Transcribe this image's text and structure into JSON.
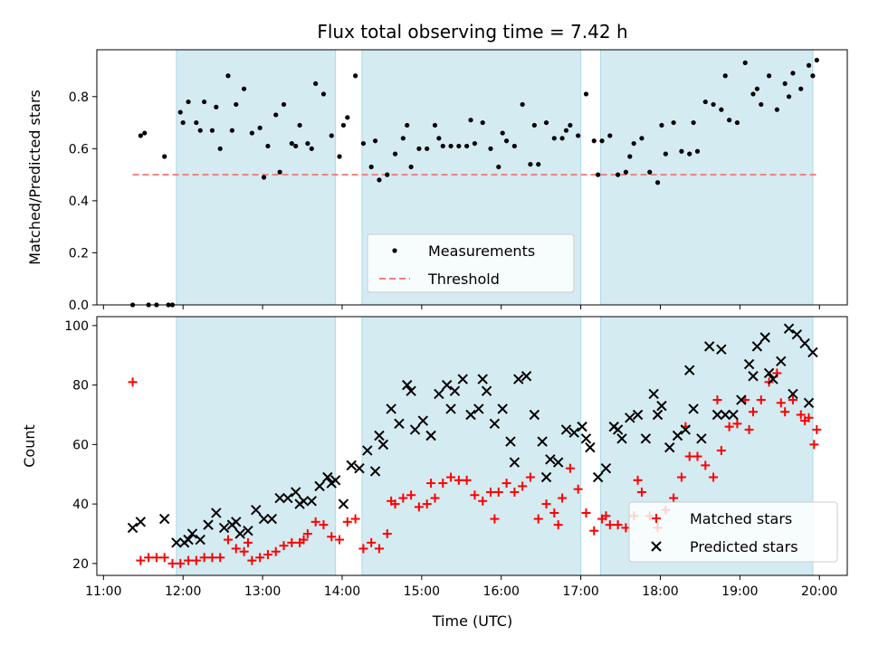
{
  "figure": {
    "title": "Flux total observing time = 7.42 h",
    "xlabel": "Time (UTC)",
    "x_ticks": [
      "11:00",
      "12:00",
      "13:00",
      "14:00",
      "15:00",
      "16:00",
      "17:00",
      "18:00",
      "19:00",
      "20:00"
    ],
    "shaded_intervals": [
      [
        "11:55",
        "13:55"
      ],
      [
        "14:15",
        "17:00"
      ],
      [
        "17:15",
        "19:55"
      ]
    ],
    "shade_color": "#add8e6"
  },
  "chart_data": [
    {
      "type": "scatter",
      "ylabel": "Matched/Predicted stars",
      "ylim": [
        0,
        0.98
      ],
      "y_ticks": [
        "0.0",
        "0.2",
        "0.4",
        "0.6",
        "0.8"
      ],
      "threshold": {
        "value": 0.5,
        "x_range": [
          "11:22",
          "19:58"
        ],
        "color": "#f08080"
      },
      "legend": {
        "position": "lower-center",
        "entries": [
          "Measurements",
          "Threshold"
        ]
      },
      "series": [
        {
          "name": "Measurements",
          "color": "#000000",
          "x": [
            "11:22",
            "11:28",
            "11:34",
            "11:40",
            "11:46",
            "11:52",
            "11:58",
            "12:04",
            "12:10",
            "12:16",
            "12:22",
            "12:28",
            "12:34",
            "12:40",
            "12:46",
            "12:52",
            "12:58",
            "13:04",
            "13:10",
            "13:16",
            "13:22",
            "13:28",
            "13:34",
            "13:40",
            "13:46",
            "13:52",
            "13:58",
            "14:04",
            "14:10",
            "14:16",
            "14:22",
            "14:28",
            "14:34",
            "14:40",
            "14:46",
            "14:52",
            "14:58",
            "15:04",
            "15:10",
            "15:16",
            "15:22",
            "15:28",
            "15:34",
            "15:40",
            "15:46",
            "15:52",
            "15:58",
            "16:04",
            "16:10",
            "16:16",
            "16:22",
            "16:28",
            "16:34",
            "16:40",
            "16:46",
            "16:52",
            "16:58",
            "17:04",
            "17:10",
            "17:16",
            "17:22",
            "17:28",
            "17:34",
            "17:40",
            "17:46",
            "17:52",
            "17:58",
            "18:04",
            "18:10",
            "18:16",
            "18:22",
            "18:28",
            "18:34",
            "18:40",
            "18:46",
            "18:52",
            "18:58",
            "19:04",
            "19:10",
            "19:16",
            "19:22",
            "19:28",
            "19:34",
            "19:40",
            "19:46",
            "19:52",
            "19:58",
            "11:31",
            "11:49",
            "12:00",
            "12:13",
            "12:25",
            "12:37",
            "13:01",
            "13:13",
            "13:25",
            "13:37",
            "14:01",
            "14:25",
            "14:49",
            "15:13",
            "15:37",
            "16:01",
            "16:25",
            "16:49",
            "17:13",
            "17:37",
            "18:01",
            "18:25",
            "18:49",
            "19:13",
            "19:37",
            "19:55"
          ],
          "y": [
            0.0,
            0.65,
            0.0,
            0.0,
            0.57,
            0.0,
            0.74,
            0.78,
            0.7,
            0.78,
            0.67,
            0.6,
            0.88,
            0.77,
            0.83,
            0.66,
            0.68,
            0.61,
            0.73,
            0.77,
            0.62,
            0.69,
            0.62,
            0.85,
            0.81,
            0.65,
            0.57,
            0.72,
            0.88,
            0.62,
            0.53,
            0.48,
            0.5,
            0.58,
            0.64,
            0.53,
            0.6,
            0.6,
            0.69,
            0.61,
            0.61,
            0.61,
            0.61,
            0.62,
            0.7,
            0.6,
            0.53,
            0.63,
            0.61,
            0.77,
            0.54,
            0.54,
            0.7,
            0.64,
            0.64,
            0.69,
            0.65,
            0.81,
            0.63,
            0.63,
            0.65,
            0.5,
            0.51,
            0.62,
            0.64,
            0.51,
            0.47,
            0.58,
            0.7,
            0.59,
            0.58,
            0.59,
            0.78,
            0.77,
            0.75,
            0.71,
            0.7,
            0.93,
            0.81,
            0.77,
            0.88,
            0.75,
            0.85,
            0.89,
            0.83,
            0.92,
            0.94,
            0.66,
            0.0,
            0.7,
            0.67,
            0.76,
            0.67,
            0.49,
            0.51,
            0.61,
            0.6,
            0.69,
            0.63,
            0.69,
            0.64,
            0.71,
            0.66,
            0.69,
            0.67,
            0.5,
            0.57,
            0.69,
            0.7,
            0.88,
            0.83,
            0.8,
            0.88
          ]
        }
      ]
    },
    {
      "type": "scatter",
      "ylabel": "Count",
      "ylim": [
        16,
        103
      ],
      "y_ticks": [
        "20",
        "40",
        "60",
        "80",
        "100"
      ],
      "legend": {
        "position": "lower-right",
        "entries": [
          "Matched stars",
          "Predicted stars"
        ]
      },
      "series": [
        {
          "name": "Matched stars",
          "marker": "plus",
          "color": "#ff0000",
          "x": [
            "11:22",
            "11:28",
            "11:34",
            "11:40",
            "11:46",
            "11:52",
            "11:58",
            "12:04",
            "12:10",
            "12:16",
            "12:22",
            "12:28",
            "12:34",
            "12:40",
            "12:46",
            "12:52",
            "12:58",
            "13:04",
            "13:10",
            "13:16",
            "13:22",
            "13:28",
            "13:34",
            "13:40",
            "13:46",
            "13:52",
            "13:58",
            "14:04",
            "14:10",
            "14:16",
            "14:22",
            "14:28",
            "14:34",
            "14:40",
            "14:46",
            "14:52",
            "14:58",
            "15:04",
            "15:10",
            "15:16",
            "15:22",
            "15:28",
            "15:34",
            "15:40",
            "15:46",
            "15:52",
            "15:58",
            "16:04",
            "16:10",
            "16:16",
            "16:22",
            "16:28",
            "16:34",
            "16:40",
            "16:46",
            "16:52",
            "16:58",
            "17:04",
            "17:10",
            "17:16",
            "17:22",
            "17:28",
            "17:34",
            "17:40",
            "17:46",
            "17:52",
            "17:58",
            "18:04",
            "18:10",
            "18:16",
            "18:22",
            "18:28",
            "18:34",
            "18:40",
            "18:46",
            "18:52",
            "18:58",
            "19:04",
            "19:10",
            "19:16",
            "19:22",
            "19:28",
            "19:34",
            "19:40",
            "19:46",
            "19:52",
            "19:58"
          ],
          "y": [
            81,
            21,
            22,
            22,
            22,
            20,
            20,
            21,
            21,
            22,
            22,
            22,
            28,
            25,
            24,
            21,
            22,
            23,
            24,
            26,
            27,
            27,
            30,
            34,
            33,
            29,
            28,
            34,
            35,
            25,
            27,
            25,
            30,
            40,
            42,
            43,
            39,
            40,
            42,
            47,
            49,
            48,
            48,
            43,
            41,
            44,
            44,
            47,
            44,
            46,
            49,
            35,
            40,
            37,
            42,
            52,
            45,
            37,
            31,
            35,
            33,
            33,
            32,
            36,
            44,
            36,
            32,
            38,
            42,
            49,
            56,
            56,
            53,
            49,
            58,
            66,
            67,
            75,
            71,
            75,
            81,
            84,
            71,
            75,
            70,
            69,
            65
          ],
          "extra_x": [
            "12:49",
            "13:31",
            "14:37",
            "15:07",
            "15:55",
            "16:43",
            "17:19",
            "17:43",
            "18:19",
            "18:43",
            "19:07",
            "19:31",
            "19:49",
            "19:56"
          ],
          "extra_y": [
            27,
            28,
            41,
            47,
            35,
            33,
            36,
            48,
            66,
            75,
            65,
            74,
            68,
            60
          ]
        },
        {
          "name": "Predicted stars",
          "marker": "x",
          "color": "#000000",
          "x": [
            "11:22",
            "11:28",
            "11:46",
            "11:55",
            "12:01",
            "12:07",
            "12:13",
            "12:19",
            "12:25",
            "12:31",
            "12:37",
            "12:43",
            "12:49",
            "12:55",
            "13:01",
            "13:07",
            "13:13",
            "13:19",
            "13:25",
            "13:31",
            "13:37",
            "13:43",
            "13:49",
            "13:55",
            "14:01",
            "14:07",
            "14:13",
            "14:19",
            "14:25",
            "14:31",
            "14:37",
            "14:43",
            "14:49",
            "14:55",
            "15:01",
            "15:07",
            "15:13",
            "15:19",
            "15:25",
            "15:31",
            "15:37",
            "15:43",
            "15:49",
            "15:55",
            "16:01",
            "16:07",
            "16:13",
            "16:19",
            "16:25",
            "16:31",
            "16:37",
            "16:43",
            "16:49",
            "16:55",
            "17:01",
            "17:07",
            "17:13",
            "17:19",
            "17:25",
            "17:31",
            "17:37",
            "17:43",
            "17:49",
            "17:55",
            "18:01",
            "18:07",
            "18:13",
            "18:19",
            "18:25",
            "18:31",
            "18:37",
            "18:43",
            "18:49",
            "18:55",
            "19:01",
            "19:07",
            "19:13",
            "19:19",
            "19:25",
            "19:31",
            "19:37",
            "19:43",
            "19:49",
            "19:55"
          ],
          "y": [
            32,
            34,
            35,
            27,
            27,
            30,
            28,
            33,
            37,
            32,
            33,
            30,
            31,
            38,
            35,
            35,
            42,
            42,
            44,
            41,
            41,
            46,
            49,
            48,
            40,
            53,
            52,
            58,
            51,
            60,
            72,
            67,
            80,
            65,
            68,
            63,
            77,
            80,
            78,
            82,
            70,
            72,
            78,
            67,
            72,
            61,
            82,
            83,
            70,
            61,
            55,
            54,
            65,
            64,
            66,
            59,
            49,
            52,
            66,
            62,
            69,
            70,
            62,
            77,
            73,
            59,
            63,
            65,
            72,
            62,
            93,
            70,
            70,
            70,
            75,
            87,
            93,
            96,
            82,
            88,
            99,
            97,
            94,
            91
          ],
          "extra_x": [
            "12:04",
            "12:40",
            "13:28",
            "13:52",
            "14:28",
            "14:52",
            "15:22",
            "15:46",
            "16:10",
            "16:34",
            "17:04",
            "17:28",
            "17:58",
            "18:22",
            "18:46",
            "19:10",
            "19:22",
            "19:40",
            "19:52"
          ],
          "extra_y": [
            28,
            34,
            40,
            47,
            63,
            78,
            72,
            82,
            54,
            49,
            62,
            65,
            70,
            85,
            92,
            83,
            84,
            77,
            74
          ]
        }
      ]
    }
  ]
}
